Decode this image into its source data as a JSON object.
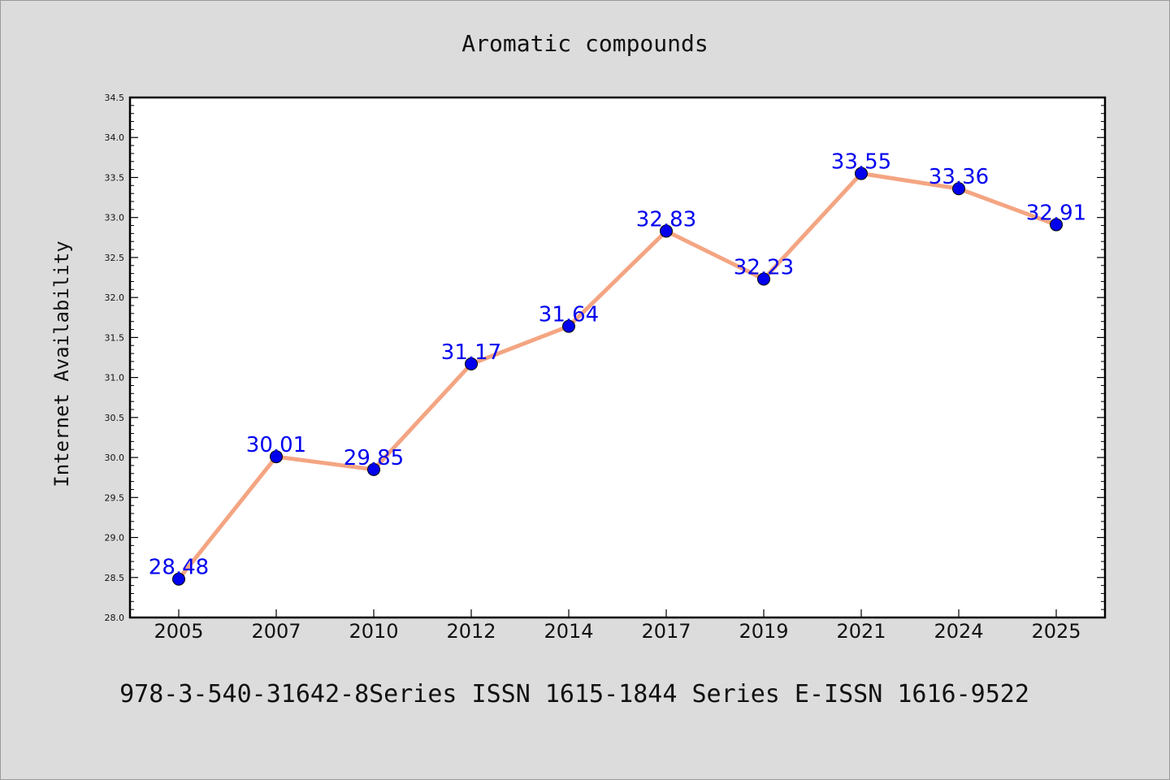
{
  "chart_data": {
    "type": "line",
    "title": "Aromatic compounds",
    "xlabel": "",
    "ylabel": "Internet Availability",
    "categories": [
      "2005",
      "2007",
      "2010",
      "2012",
      "2014",
      "2017",
      "2019",
      "2021",
      "2024",
      "2025"
    ],
    "series": [
      {
        "values": [
          28.48,
          30.01,
          29.85,
          31.17,
          31.64,
          32.83,
          32.23,
          33.55,
          33.36,
          32.91
        ],
        "labels": [
          "28.48",
          "30.01",
          "29.85",
          "31.17",
          "31.64",
          "32.83",
          "32.23",
          "33.55",
          "33.36",
          "32.91"
        ],
        "line_color": "#f4a582",
        "marker_color": "#0000ee"
      }
    ],
    "ylim": [
      28.0,
      34.5
    ],
    "yticks": [
      "28.0",
      "28.5",
      "29.0",
      "29.5",
      "30.0",
      "30.5",
      "31.0",
      "31.5",
      "32.0",
      "32.5",
      "33.0",
      "33.5",
      "34.0",
      "34.5"
    ],
    "grid": false,
    "legend": "none",
    "data_label_color": "#0000ee"
  },
  "footer": {
    "text": "978-3-540-31642-8Series ISSN 1615-1844 Series E-ISSN 1616-9522"
  }
}
